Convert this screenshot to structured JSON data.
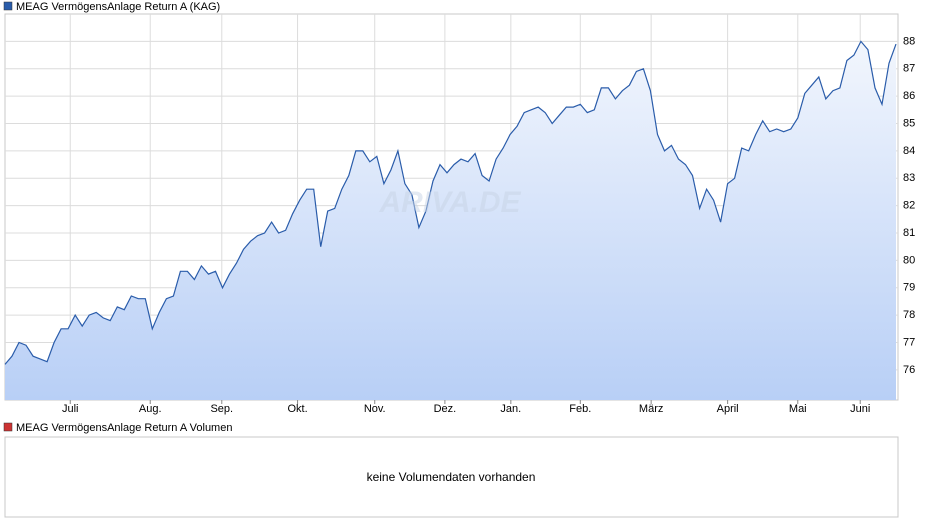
{
  "chart_data": {
    "type": "line",
    "legend_title": "MEAG VermögensAnlage Return A (KAG)",
    "watermark": "ARIVA.DE",
    "series": [
      {
        "name": "MEAG VermögensAnlage Return A (KAG)",
        "color": "#2a5caa",
        "values": [
          76.2,
          76.5,
          77.0,
          76.9,
          76.5,
          76.4,
          76.3,
          77.0,
          77.5,
          77.5,
          78.0,
          77.6,
          78.0,
          78.1,
          77.9,
          77.8,
          78.3,
          78.2,
          78.7,
          78.6,
          78.6,
          77.5,
          78.1,
          78.6,
          78.7,
          79.6,
          79.6,
          79.3,
          79.8,
          79.5,
          79.6,
          79.0,
          79.5,
          79.9,
          80.4,
          80.7,
          80.9,
          81.0,
          81.4,
          81.0,
          81.1,
          81.7,
          82.2,
          82.6,
          82.6,
          80.5,
          81.8,
          81.9,
          82.6,
          83.1,
          84.0,
          84.0,
          83.6,
          83.8,
          82.8,
          83.3,
          84.0,
          82.8,
          82.4,
          81.2,
          81.8,
          82.9,
          83.5,
          83.2,
          83.5,
          83.7,
          83.6,
          83.9,
          83.1,
          82.9,
          83.7,
          84.1,
          84.6,
          84.9,
          85.4,
          85.5,
          85.6,
          85.4,
          85.0,
          85.3,
          85.6,
          85.6,
          85.7,
          85.4,
          85.5,
          86.3,
          86.3,
          85.9,
          86.2,
          86.4,
          86.9,
          87.0,
          86.2,
          84.6,
          84.0,
          84.2,
          83.7,
          83.5,
          83.1,
          81.9,
          82.6,
          82.2,
          81.4,
          82.8,
          83.0,
          84.1,
          84.0,
          84.6,
          85.1,
          84.7,
          84.8,
          84.7,
          84.8,
          85.2,
          86.1,
          86.4,
          86.7,
          85.9,
          86.2,
          86.3,
          87.3,
          87.5,
          88.0,
          87.7,
          86.3,
          85.7,
          87.2,
          87.9
        ]
      }
    ],
    "xlim": [
      0,
      127
    ],
    "xticks": [
      {
        "value": 9.3,
        "label": "Juli"
      },
      {
        "value": 20.7,
        "label": "Aug."
      },
      {
        "value": 30.9,
        "label": "Sep."
      },
      {
        "value": 41.7,
        "label": "Okt."
      },
      {
        "value": 52.7,
        "label": "Nov."
      },
      {
        "value": 62.7,
        "label": "Dez."
      },
      {
        "value": 72.1,
        "label": "Jan."
      },
      {
        "value": 82,
        "label": "Feb."
      },
      {
        "value": 92.1,
        "label": "März"
      },
      {
        "value": 103,
        "label": "April"
      },
      {
        "value": 113,
        "label": "Mai"
      },
      {
        "value": 121.9,
        "label": "Juni"
      }
    ],
    "ylim": [
      74.9,
      89
    ],
    "yticks": [
      76,
      77,
      78,
      79,
      80,
      81,
      82,
      83,
      84,
      85,
      86,
      87,
      88
    ],
    "grid": true,
    "volume_panel": {
      "legend_title": "MEAG VermögensAnlage Return A Volumen",
      "color": "#cc3333",
      "message": "keine Volumendaten vorhanden"
    }
  }
}
